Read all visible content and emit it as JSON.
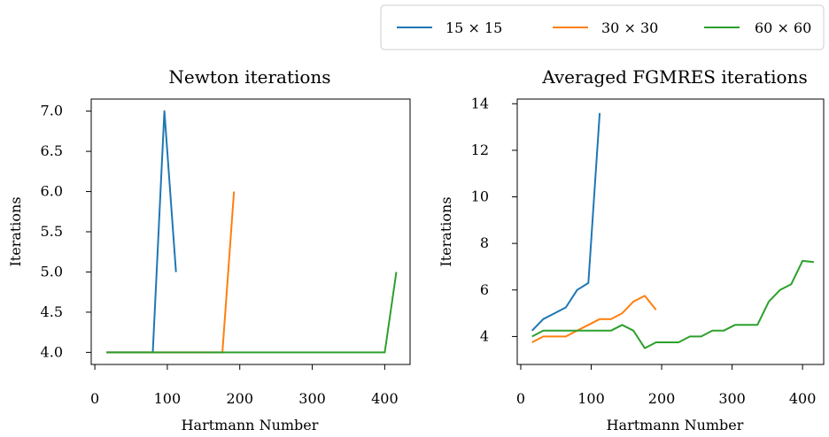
{
  "legend": {
    "placement": "top-right",
    "entries": [
      {
        "label": "15 × 15",
        "color": "#1f77b4"
      },
      {
        "label": "30 × 30",
        "color": "#ff7f0e"
      },
      {
        "label": "60 × 60",
        "color": "#2ca02c"
      }
    ]
  },
  "chart_data": [
    {
      "type": "line",
      "title": "Newton iterations",
      "xlabel": "Hartmann Number",
      "ylabel": "Iterations",
      "xlim": [
        -5,
        435
      ],
      "ylim": [
        3.85,
        7.15
      ],
      "xticks": [
        0,
        100,
        200,
        300,
        400
      ],
      "yticks": [
        4.0,
        4.5,
        5.0,
        5.5,
        6.0,
        6.5,
        7.0
      ],
      "ytick_labels": [
        "4.0",
        "4.5",
        "5.0",
        "5.5",
        "6.0",
        "6.5",
        "7.0"
      ],
      "grid": false,
      "series": [
        {
          "name": "15 × 15",
          "color": "#1f77b4",
          "points": [
            [
              16,
              4
            ],
            [
              32,
              4
            ],
            [
              48,
              4
            ],
            [
              64,
              4
            ],
            [
              80,
              4
            ],
            [
              96,
              7
            ],
            [
              112,
              5
            ]
          ]
        },
        {
          "name": "30 × 30",
          "color": "#ff7f0e",
          "points": [
            [
              16,
              4
            ],
            [
              32,
              4
            ],
            [
              48,
              4
            ],
            [
              64,
              4
            ],
            [
              80,
              4
            ],
            [
              96,
              4
            ],
            [
              112,
              4
            ],
            [
              128,
              4
            ],
            [
              144,
              4
            ],
            [
              160,
              4
            ],
            [
              176,
              4
            ],
            [
              192,
              6
            ]
          ]
        },
        {
          "name": "60 × 60",
          "color": "#2ca02c",
          "points": [
            [
              16,
              4
            ],
            [
              48,
              4
            ],
            [
              96,
              4
            ],
            [
              144,
              4
            ],
            [
              192,
              4
            ],
            [
              240,
              4
            ],
            [
              288,
              4
            ],
            [
              336,
              4
            ],
            [
              384,
              4
            ],
            [
              400,
              4
            ],
            [
              416,
              5
            ]
          ]
        }
      ]
    },
    {
      "type": "line",
      "title": "Averaged FGMRES iterations",
      "xlabel": "Hartmann Number",
      "ylabel": "Iterations",
      "xlim": [
        -5,
        430
      ],
      "ylim": [
        2.8,
        14.2
      ],
      "xticks": [
        0,
        100,
        200,
        300,
        400
      ],
      "yticks": [
        4,
        6,
        8,
        10,
        12,
        14
      ],
      "ytick_labels": [
        "4",
        "6",
        "8",
        "10",
        "12",
        "14"
      ],
      "grid": false,
      "series": [
        {
          "name": "15 × 15",
          "color": "#1f77b4",
          "points": [
            [
              16,
              4.25
            ],
            [
              32,
              4.75
            ],
            [
              48,
              5.0
            ],
            [
              64,
              5.25
            ],
            [
              80,
              6.0
            ],
            [
              96,
              6.3
            ],
            [
              112,
              13.6
            ]
          ]
        },
        {
          "name": "30 × 30",
          "color": "#ff7f0e",
          "points": [
            [
              16,
              3.75
            ],
            [
              32,
              4.0
            ],
            [
              48,
              4.0
            ],
            [
              64,
              4.0
            ],
            [
              80,
              4.25
            ],
            [
              96,
              4.5
            ],
            [
              112,
              4.75
            ],
            [
              128,
              4.75
            ],
            [
              144,
              5.0
            ],
            [
              160,
              5.5
            ],
            [
              176,
              5.75
            ],
            [
              192,
              5.15
            ]
          ]
        },
        {
          "name": "60 × 60",
          "color": "#2ca02c",
          "points": [
            [
              16,
              4.0
            ],
            [
              32,
              4.25
            ],
            [
              48,
              4.25
            ],
            [
              64,
              4.25
            ],
            [
              80,
              4.25
            ],
            [
              96,
              4.25
            ],
            [
              112,
              4.25
            ],
            [
              128,
              4.25
            ],
            [
              144,
              4.5
            ],
            [
              160,
              4.25
            ],
            [
              176,
              3.5
            ],
            [
              192,
              3.75
            ],
            [
              208,
              3.75
            ],
            [
              224,
              3.75
            ],
            [
              240,
              4.0
            ],
            [
              256,
              4.0
            ],
            [
              272,
              4.25
            ],
            [
              288,
              4.25
            ],
            [
              304,
              4.5
            ],
            [
              320,
              4.5
            ],
            [
              336,
              4.5
            ],
            [
              352,
              5.5
            ],
            [
              368,
              6.0
            ],
            [
              384,
              6.25
            ],
            [
              400,
              7.25
            ],
            [
              416,
              7.2
            ]
          ]
        }
      ]
    }
  ]
}
